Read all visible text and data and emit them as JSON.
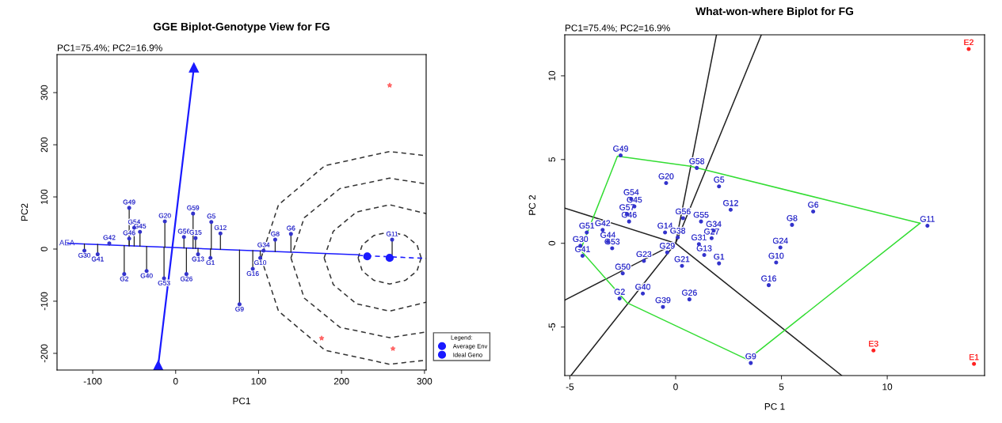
{
  "chart_data": [
    {
      "type": "scatter",
      "title": "GGE Biplot-Genotype View for FG",
      "subtitle": "PC1=75.4%; PC2=16.9%",
      "xlabel": "PC1",
      "ylabel": "PC2",
      "xlim": [
        -143,
        302
      ],
      "ylim": [
        -232,
        373
      ],
      "xticks": [
        -100,
        0,
        100,
        200,
        300
      ],
      "yticks": [
        -200,
        -100,
        0,
        100,
        200,
        300
      ],
      "legend": "bottom right",
      "legend_title": "Legend:",
      "annotations": [
        {
          "text": "AEA",
          "x": -131,
          "y": 11
        }
      ],
      "series": [
        {
          "type": "line",
          "line_style": "dashed",
          "color": "#333333",
          "x": [
            220,
            225,
            239,
            258,
            277,
            291,
            296
          ],
          "values": [
            -17,
            8,
            26,
            33,
            26,
            8,
            -17
          ]
        },
        {
          "type": "line",
          "line_style": "dashed",
          "color": "#333333",
          "x": [
            220,
            225,
            239,
            258,
            277,
            291,
            296
          ],
          "values": [
            -17,
            -42,
            -60,
            -67,
            -60,
            -42,
            -17
          ]
        },
        {
          "type": "line",
          "line_style": "dashed",
          "color": "#333333",
          "x": [
            179,
            190,
            218,
            258,
            302
          ],
          "values": [
            -17,
            34,
            71,
            85,
            68
          ]
        },
        {
          "type": "line",
          "line_style": "dashed",
          "color": "#333333",
          "x": [
            179,
            190,
            218,
            258,
            302
          ],
          "values": [
            -17,
            -68,
            -105,
            -119,
            -102
          ]
        },
        {
          "type": "line",
          "line_style": "dashed",
          "color": "#333333",
          "x": [
            139,
            155,
            198,
            258,
            302
          ],
          "values": [
            -17,
            60,
            116,
            136,
            125
          ]
        },
        {
          "type": "line",
          "line_style": "dashed",
          "color": "#333333",
          "x": [
            139,
            155,
            198,
            258,
            302
          ],
          "values": [
            -17,
            -94,
            -150,
            -170,
            -159
          ]
        },
        {
          "type": "line",
          "line_style": "dashed",
          "color": "#333333",
          "x": [
            103,
            124,
            180,
            258,
            302
          ],
          "values": [
            -17,
            85,
            160,
            187,
            179
          ]
        },
        {
          "type": "line",
          "line_style": "dashed",
          "color": "#333333",
          "x": [
            103,
            124,
            180,
            258,
            302
          ],
          "values": [
            -17,
            -119,
            -194,
            -221,
            -213
          ]
        },
        {
          "type": "line",
          "line_style": "solid",
          "color": "#1a1aff",
          "x": [
            -130,
            220
          ],
          "values": [
            11,
            -11
          ]
        },
        {
          "type": "line",
          "line_style": "dashed",
          "color": "#1a1aff",
          "x": [
            220,
            302
          ],
          "values": [
            -12,
            -18
          ]
        },
        {
          "type": "line",
          "line_style": "solid",
          "marker": "triangle",
          "color": "#1a1aff",
          "x": [
            -21,
            22
          ],
          "values": [
            -223,
            348
          ]
        },
        {
          "type": "lollipop",
          "marker": "circle",
          "color": "#3333cc",
          "x": [
            -56,
            -13,
            21,
            43,
            54,
            -62,
            -35,
            -14,
            13,
            42,
            27,
            -94,
            -110,
            -80,
            -50,
            -43,
            -56,
            10,
            24,
            120,
            139,
            261,
            102,
            93,
            77,
            106
          ],
          "values": [
            79,
            53,
            68,
            52,
            30,
            -48,
            -42,
            -56,
            -48,
            -17,
            -10,
            -10,
            -3,
            11,
            41,
            33,
            20,
            23,
            21,
            18,
            29,
            18,
            -17,
            -38,
            -106,
            -3
          ],
          "value_labels": [
            "G49",
            "G20",
            "G59",
            "G5",
            "G12",
            "G2",
            "G40",
            "G53",
            "G26",
            "G1",
            "G13",
            "G41",
            "G30",
            "G42",
            "G54",
            "G45",
            "G46",
            "G56",
            "G15",
            "G8",
            "G6",
            "G11",
            "G10",
            "G16",
            "G9",
            "G34"
          ]
        },
        {
          "name": "Average Env",
          "marker": "circle",
          "color": "#1a1aff",
          "x": [
            231
          ],
          "values": [
            -14
          ]
        },
        {
          "name": "Ideal Geno",
          "marker": "circle",
          "color": "#1a1aff",
          "x": [
            258
          ],
          "values": [
            -17
          ]
        },
        {
          "marker": "star",
          "color": "#ff6666",
          "x": [
            258,
            176,
            262
          ],
          "values": [
            314,
            -171,
            -191
          ]
        }
      ]
    },
    {
      "type": "scatter",
      "title": "What-won-where Biplot for FG",
      "subtitle": "PC1=75.4%; PC2=16.9%",
      "xlabel": "PC 1",
      "ylabel": "PC 2",
      "xlim": [
        -5.24,
        14.6
      ],
      "ylim": [
        -7.9,
        12.45
      ],
      "xticks": [
        -5,
        0,
        5,
        10
      ],
      "yticks": [
        -5,
        0,
        5,
        10
      ],
      "series": [
        {
          "type": "line",
          "line_style": "solid",
          "color": "#222222",
          "x": [
            1.93,
            0,
            4.05,
            0,
            -5.24,
            0,
            -5.24,
            0,
            -4.95,
            0,
            7.85
          ],
          "values": [
            12.45,
            0,
            12.45,
            0,
            2.1,
            0,
            -3.4,
            0,
            -7.9,
            0,
            -7.9
          ]
        },
        {
          "type": "line",
          "line_style": "solid",
          "color": "#33dd33",
          "x": [
            -4.5,
            -2.75,
            0.7,
            11.55
          ],
          "values": [
            -0.4,
            5.2,
            4.6,
            1.2
          ]
        },
        {
          "type": "line",
          "line_style": "solid",
          "color": "#33dd33",
          "x": [
            -4.5,
            -2.3,
            3.4,
            11.55
          ],
          "values": [
            -0.4,
            -3.55,
            -6.95,
            1.2
          ]
        },
        {
          "marker": "circle",
          "color": "#3333cc",
          "x": [
            -2.6,
            1.0,
            -0.45,
            2.05,
            2.6,
            6.5,
            5.5,
            11.9,
            -2.1,
            -1.95,
            -2.3,
            -2.2,
            -3.45,
            -4.2,
            -4.5,
            -4.4,
            -3.2,
            0.35,
            1.2,
            -0.5,
            1.8,
            1.7,
            1.1,
            0.1,
            4.95,
            4.75,
            4.4,
            2.05,
            1.35,
            -0.4,
            -1.5,
            0.3,
            -2.5,
            -1.55,
            -2.65,
            -0.6,
            0.65,
            3.55,
            -3.0
          ],
          "values": [
            5.25,
            4.5,
            3.6,
            3.4,
            2.0,
            1.9,
            1.1,
            1.05,
            2.65,
            2.2,
            1.75,
            1.3,
            0.8,
            0.65,
            -0.15,
            -0.75,
            0.1,
            1.5,
            1.3,
            0.65,
            0.75,
            0.3,
            -0.05,
            0.35,
            -0.25,
            -1.15,
            -2.5,
            -1.2,
            -0.7,
            -0.55,
            -1.05,
            -1.35,
            -1.8,
            -3.0,
            -3.3,
            -3.8,
            -3.35,
            -7.15,
            -0.3
          ],
          "value_labels": [
            "G49",
            "G58",
            "G20",
            "G5",
            "G12",
            "G6",
            "G8",
            "G11",
            "G54",
            "G45",
            "G57",
            "G46",
            "G42",
            "G51",
            "G30",
            "G41",
            "G44",
            "G56",
            "G55",
            "G14",
            "G34",
            "G27",
            "G31",
            "G38",
            "G24",
            "G10",
            "G16",
            "G1",
            "G13",
            "G29",
            "G23",
            "G21",
            "G50",
            "G40",
            "G2",
            "G39",
            "G26",
            "G9",
            "G53"
          ]
        },
        {
          "marker": "circle",
          "color": "#ff2222",
          "x": [
            14.1,
            13.85,
            9.35
          ],
          "values": [
            -7.2,
            11.6,
            -6.4
          ],
          "value_labels": [
            "E1",
            "E2",
            "E3"
          ]
        }
      ]
    }
  ]
}
